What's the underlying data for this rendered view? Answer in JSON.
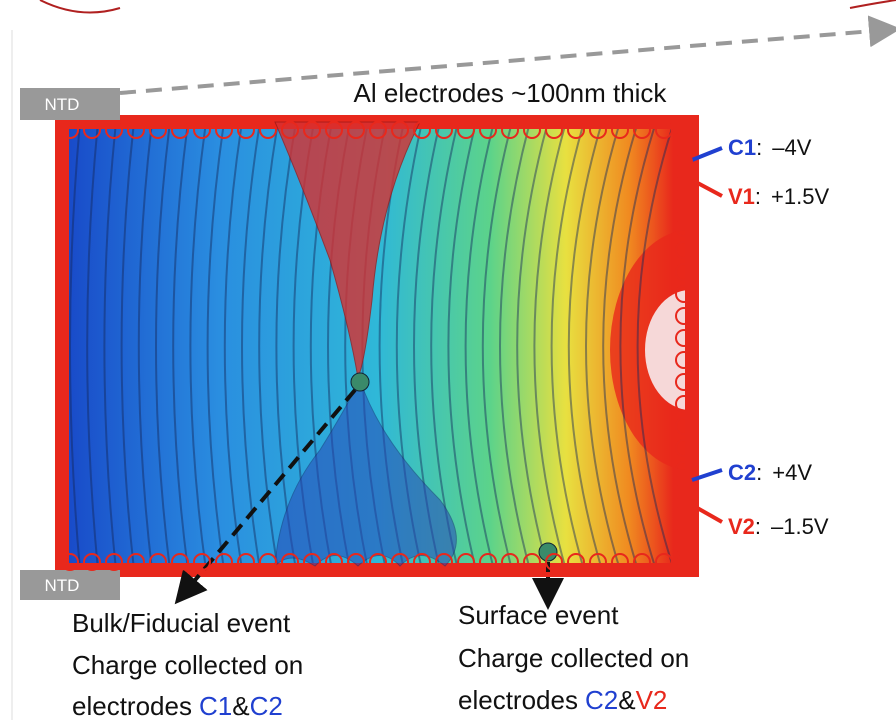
{
  "header": {
    "title": "Al electrodes ~100nm thick"
  },
  "ntd_labels": [
    "NTD",
    "NTD"
  ],
  "electrodes": [
    {
      "name": "C1",
      "separator": ":",
      "voltage": "–4V"
    },
    {
      "name": "V1",
      "separator": ":",
      "voltage": "+1.5V"
    },
    {
      "name": "C2",
      "separator": ":",
      "voltage": "+4V"
    },
    {
      "name": "V2",
      "separator": ":",
      "voltage": "–1.5V"
    }
  ],
  "events": [
    {
      "title": "Bulk/Fiducial event",
      "line2": "Charge collected on",
      "prefix": "electrodes",
      "first": "C1",
      "joiner": "&",
      "second": "C2"
    },
    {
      "title": "Surface event",
      "line2": "Charge collected on",
      "prefix": "electrodes",
      "first": "C2",
      "joiner": "&",
      "second": "V2"
    }
  ]
}
